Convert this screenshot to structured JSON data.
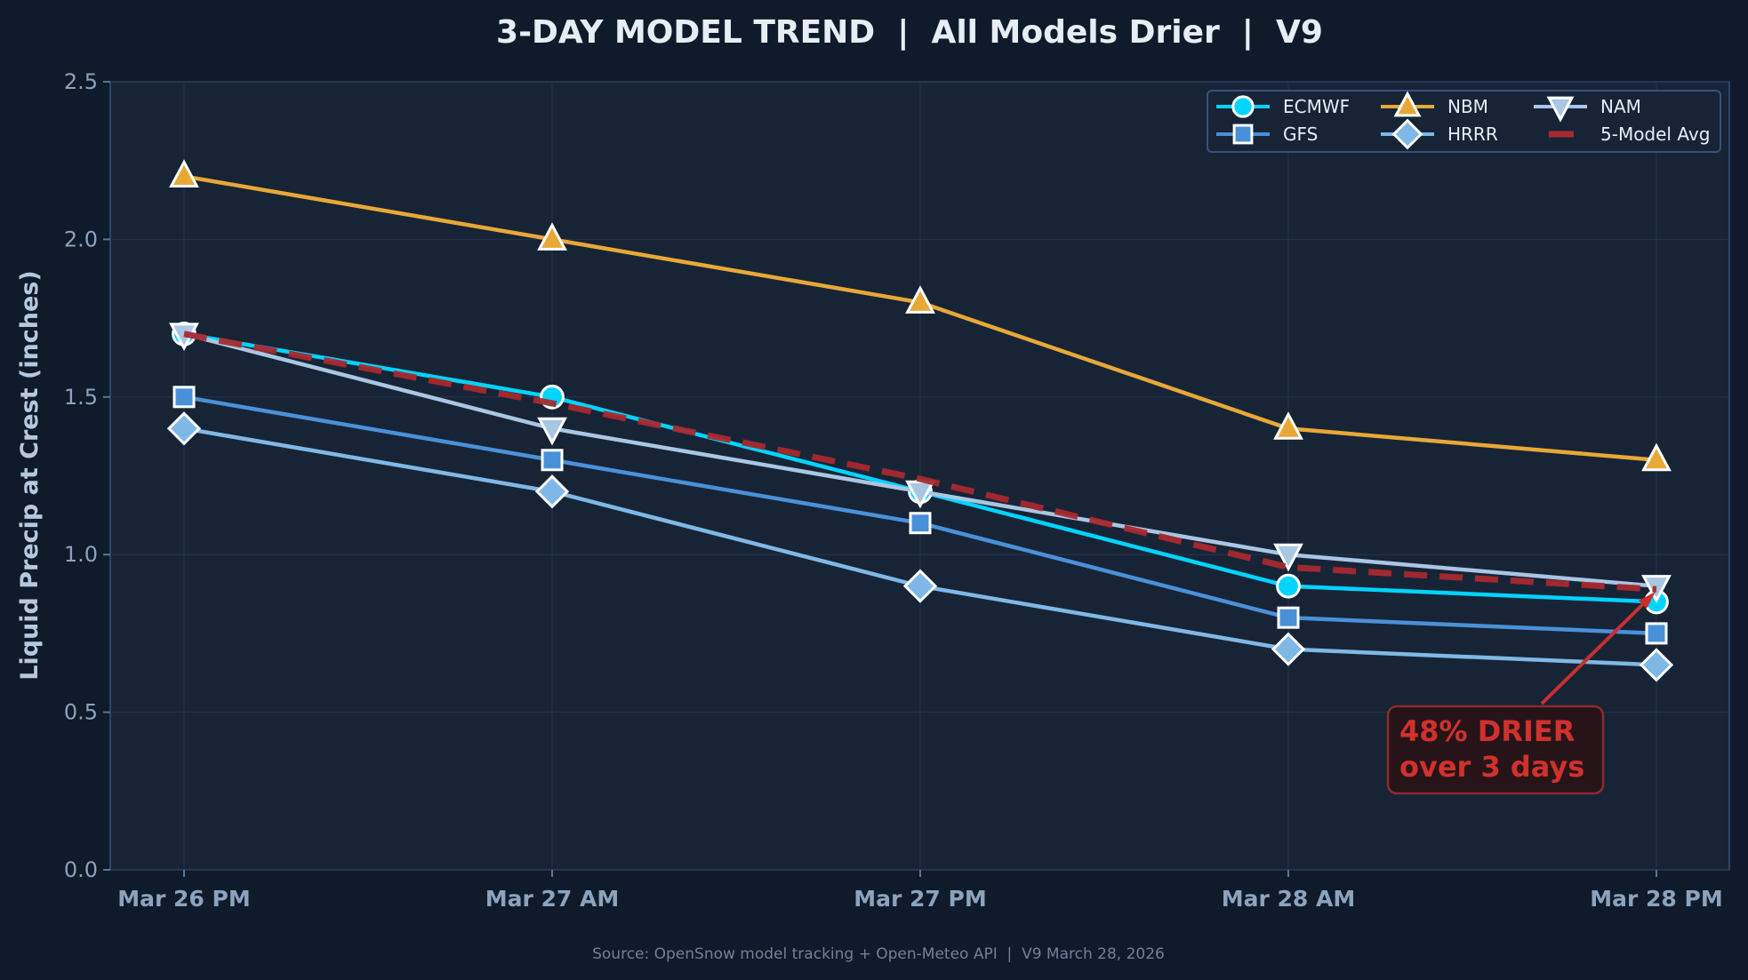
{
  "chart_data": {
    "type": "line",
    "title": "3-DAY MODEL TREND  |  All Models Drier  |  V9",
    "xlabel": "",
    "ylabel": "Liquid Precip at Crest (inches)",
    "categories": [
      "Mar 26 PM",
      "Mar 27 AM",
      "Mar 27 PM",
      "Mar 28 AM",
      "Mar 28 PM"
    ],
    "ylim": [
      0,
      2.5
    ],
    "yticks": [
      "0.0",
      "0.5",
      "1.0",
      "1.5",
      "2.0",
      "2.5"
    ],
    "grid": true,
    "legend_position": "top-right",
    "series": [
      {
        "name": "ECMWF",
        "values": [
          1.7,
          1.5,
          1.2,
          0.9,
          0.85
        ],
        "color": "#00d4ff",
        "marker": "circle",
        "dashed": false
      },
      {
        "name": "GFS",
        "values": [
          1.5,
          1.3,
          1.1,
          0.8,
          0.75
        ],
        "color": "#4a90d9",
        "marker": "square",
        "dashed": false
      },
      {
        "name": "NBM",
        "values": [
          2.2,
          2.0,
          1.8,
          1.4,
          1.3
        ],
        "color": "#e8a838",
        "marker": "triangle-up",
        "dashed": false
      },
      {
        "name": "HRRR",
        "values": [
          1.4,
          1.2,
          0.9,
          0.7,
          0.65
        ],
        "color": "#7fb8e6",
        "marker": "diamond",
        "dashed": false
      },
      {
        "name": "NAM",
        "values": [
          1.7,
          1.4,
          1.2,
          1.0,
          0.9
        ],
        "color": "#a9c6e3",
        "marker": "triangle-down",
        "dashed": false
      },
      {
        "name": "5-Model Avg",
        "values": [
          1.7,
          1.48,
          1.24,
          0.96,
          0.89
        ],
        "color": "#a8292f",
        "marker": "none",
        "dashed": true
      }
    ],
    "annotation": {
      "line1": "48% DRIER",
      "line2": "over 3 days",
      "points_to": "Mar 28 PM",
      "color": "#d0312d"
    },
    "source": "Source: OpenSnow model tracking + Open-Meteo API  |  V9 March 28, 2026"
  }
}
